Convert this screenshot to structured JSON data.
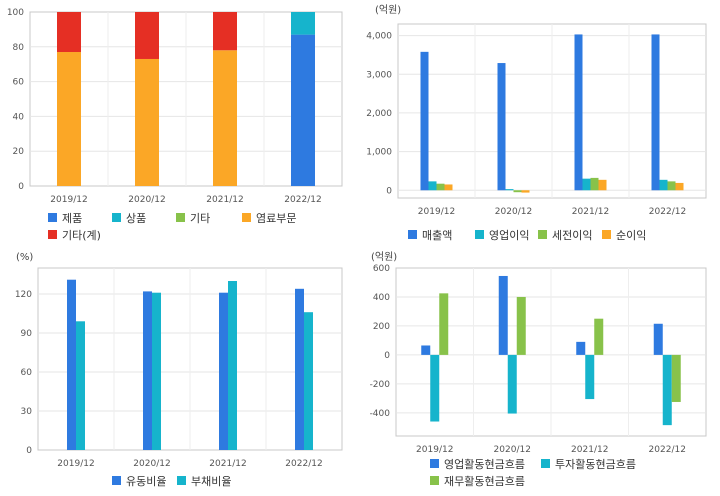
{
  "colors": {
    "blue": "#2e7ae0",
    "cyan": "#16b4cc",
    "green": "#88c24a",
    "orange": "#fba726",
    "red": "#e52f24"
  },
  "chart_data": [
    {
      "type": "bar",
      "stacked": true,
      "title": "",
      "unit_label": "",
      "categories": [
        "2019/12",
        "2020/12",
        "2021/12",
        "2022/12"
      ],
      "ylim": [
        0,
        100
      ],
      "yticks": [
        "0",
        "20",
        "40",
        "60",
        "80",
        "100"
      ],
      "grid": true,
      "legend_position": "bottom",
      "series": [
        {
          "name": "제품",
          "color": "blue",
          "values": [
            0,
            0,
            0,
            87
          ]
        },
        {
          "name": "상품",
          "color": "cyan",
          "values": [
            0,
            0,
            0,
            13
          ]
        },
        {
          "name": "기타",
          "color": "green",
          "values": [
            0,
            0,
            0,
            0
          ]
        },
        {
          "name": "염료부문",
          "color": "orange",
          "values": [
            77,
            73,
            78,
            0
          ]
        },
        {
          "name": "기타(계)",
          "color": "red",
          "values": [
            23,
            27,
            22,
            0
          ]
        }
      ]
    },
    {
      "type": "bar",
      "stacked": false,
      "title": "",
      "unit_label": "(억원)",
      "categories": [
        "2019/12",
        "2020/12",
        "2021/12",
        "2022/12"
      ],
      "ylim": [
        -200,
        4300
      ],
      "yticks": [
        "0",
        "1,000",
        "2,000",
        "3,000",
        "4,000"
      ],
      "grid": true,
      "legend_position": "bottom",
      "series": [
        {
          "name": "매출액",
          "color": "blue",
          "values": [
            3580,
            3290,
            4030,
            4030
          ]
        },
        {
          "name": "영업이익",
          "color": "cyan",
          "values": [
            230,
            30,
            300,
            270
          ]
        },
        {
          "name": "세전이익",
          "color": "green",
          "values": [
            170,
            -50,
            320,
            230
          ]
        },
        {
          "name": "순이익",
          "color": "orange",
          "values": [
            150,
            -60,
            270,
            190
          ]
        }
      ]
    },
    {
      "type": "bar",
      "stacked": false,
      "title": "",
      "unit_label": "(%)",
      "categories": [
        "2019/12",
        "2020/12",
        "2021/12",
        "2022/12"
      ],
      "ylim": [
        0,
        140
      ],
      "yticks": [
        "0",
        "30",
        "60",
        "90",
        "120"
      ],
      "grid": true,
      "legend_position": "bottom",
      "series": [
        {
          "name": "유동비율",
          "color": "blue",
          "values": [
            131,
            122,
            121,
            124
          ]
        },
        {
          "name": "부채비율",
          "color": "cyan",
          "values": [
            99,
            121,
            130,
            106
          ]
        }
      ]
    },
    {
      "type": "bar",
      "stacked": false,
      "title": "",
      "unit_label": "(억원)",
      "categories": [
        "2019/12",
        "2020/12",
        "2021/12",
        "2022/12"
      ],
      "ylim": [
        -560,
        600
      ],
      "yticks": [
        "-400",
        "-200",
        "0",
        "200",
        "400",
        "600"
      ],
      "grid": true,
      "legend_position": "bottom",
      "series": [
        {
          "name": "영업활동현금흐름",
          "color": "blue",
          "values": [
            65,
            545,
            90,
            215
          ]
        },
        {
          "name": "투자활동현금흐름",
          "color": "cyan",
          "values": [
            -460,
            -405,
            -305,
            -485
          ]
        },
        {
          "name": "재무활동현금흐름",
          "color": "green",
          "values": [
            425,
            400,
            250,
            -325
          ]
        }
      ]
    }
  ]
}
